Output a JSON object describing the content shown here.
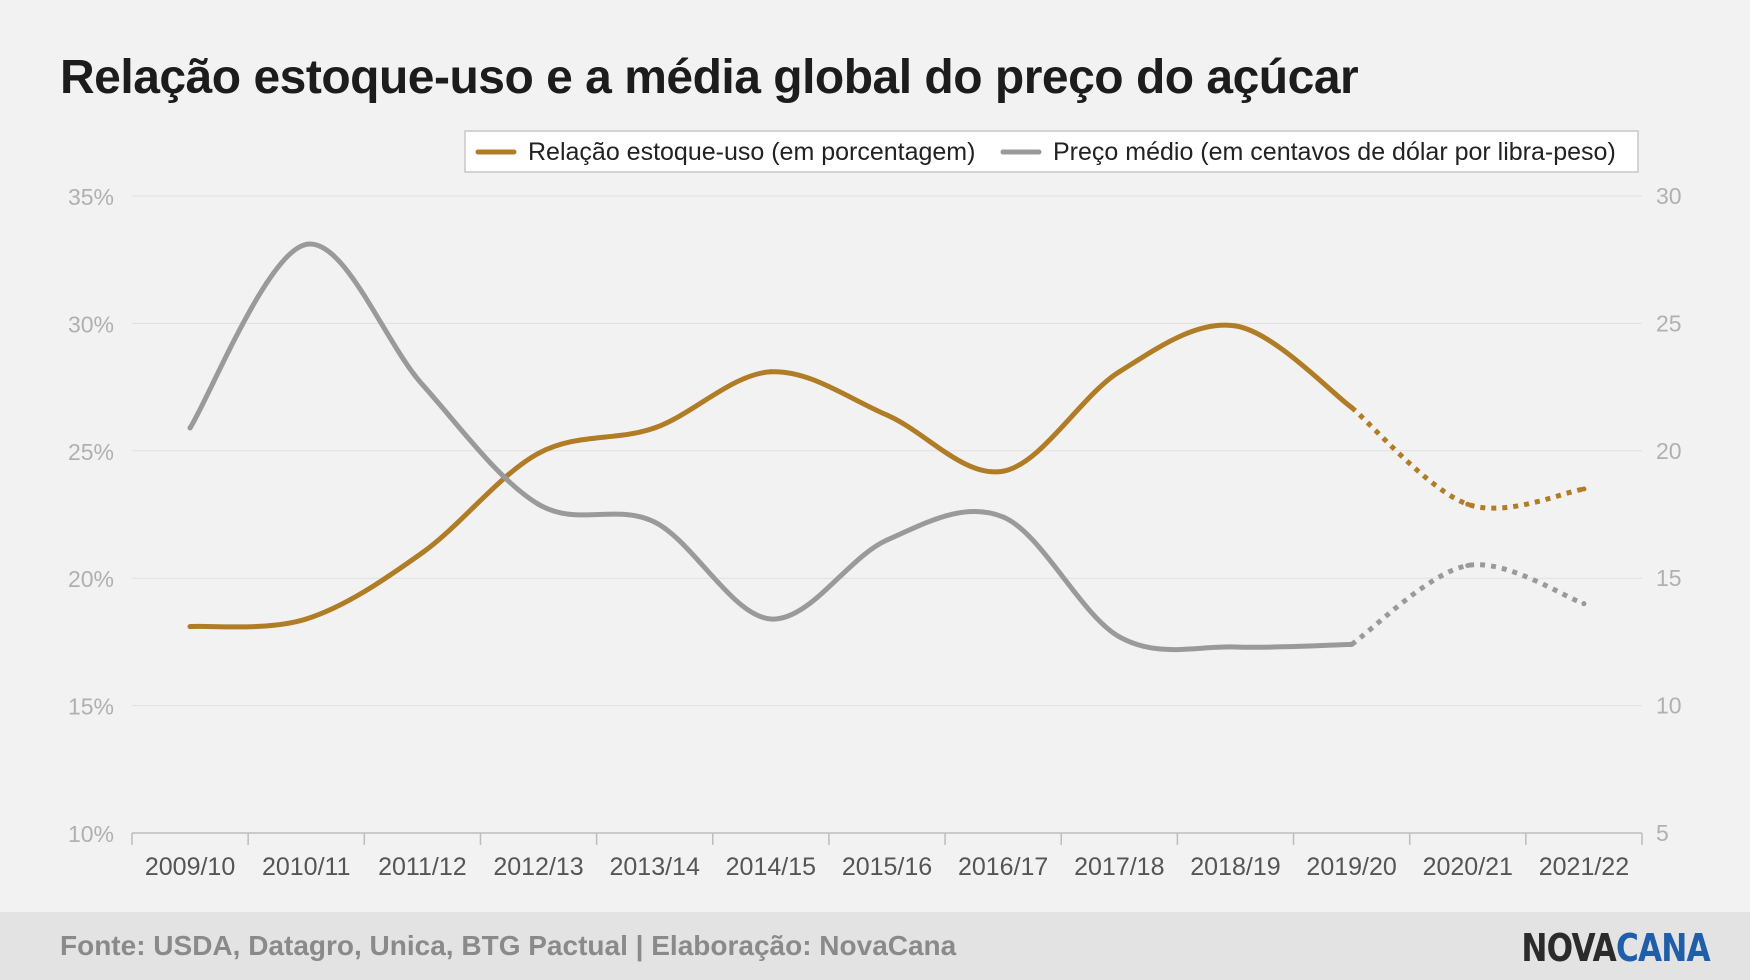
{
  "title": "Relação estoque-uso e a média global do preço do açúcar",
  "footer": {
    "source": "Fonte: USDA, Datagro, Unica, BTG Pactual | Elaboração: NovaCana",
    "logo_part1": "NOVA",
    "logo_part2": "CANA"
  },
  "colors": {
    "series_stock_use": "#b07c25",
    "series_price": "#9a9a9a",
    "grid": "#e0e0e0",
    "axis_text": "#b0b0b0",
    "category_text": "#555555",
    "logo_blue": "#1f5ea8"
  },
  "chart_data": {
    "type": "line",
    "title": "Relação estoque-uso e a média global do preço do açúcar",
    "categories": [
      "2009/10",
      "2010/11",
      "2011/12",
      "2012/13",
      "2013/14",
      "2014/15",
      "2015/16",
      "2016/17",
      "2017/18",
      "2018/19",
      "2019/20",
      "2020/21",
      "2021/22"
    ],
    "y_left": {
      "ticks": [
        "35%",
        "30%",
        "25%",
        "20%",
        "15%",
        "10%"
      ],
      "min": 10,
      "max": 35
    },
    "y_right": {
      "ticks": [
        "30",
        "25",
        "20",
        "15",
        "10",
        "5"
      ],
      "min": 5,
      "max": 30
    },
    "grid": true,
    "legend_position": "top-right",
    "series": [
      {
        "name": "Relação estoque-uso (em porcentagem)",
        "axis": "left",
        "values": [
          18.1,
          18.4,
          21.0,
          24.9,
          25.9,
          28.1,
          26.4,
          24.2,
          28.1,
          29.9,
          26.7,
          22.9,
          23.5
        ],
        "projected_from_index": 10
      },
      {
        "name": "Preço médio (em centavos de dólar por libra-peso)",
        "axis": "right",
        "values": [
          20.9,
          28.1,
          22.6,
          17.9,
          17.2,
          13.4,
          16.5,
          17.4,
          12.7,
          12.3,
          12.4,
          15.5,
          14.0
        ],
        "projected_from_index": 10
      }
    ]
  }
}
